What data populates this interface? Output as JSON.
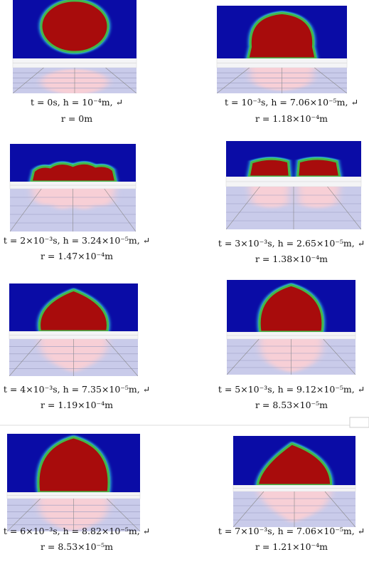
{
  "panels": [
    {
      "line1": "t = 0s,  h = 10⁻⁴m,  ↵",
      "line2": "r = 0m"
    },
    {
      "line1": "t = 10⁻³s,  h = 7.06×10⁻⁵m,  ↵",
      "line2": "r = 1.18×10⁻⁴m"
    },
    {
      "line1": "t = 2×10⁻³s,  h = 3.24×10⁻⁵m,  ↵",
      "line2": "r = 1.47×10⁻⁴m"
    },
    {
      "line1": "t = 3×10⁻³s,  h = 2.65×10⁻⁵m,  ↵",
      "line2": "r = 1.38×10⁻⁴m"
    },
    {
      "line1": "t = 4×10⁻³s,  h = 7.35×10⁻⁵m,  ↵",
      "line2": "r = 1.19×10⁻⁴m"
    },
    {
      "line1": "t = 5×10⁻³s,  h = 9.12×10⁻⁵m,  ↵",
      "line2": "r = 8.53×10⁻⁵m"
    },
    {
      "line1": "t = 6×10⁻³s,  h = 8.82×10⁻⁵m,  ↵",
      "line2": "r = 8.53×10⁻⁵m"
    },
    {
      "line1": "t = 7×10⁻³s,  h = 7.06×10⁻⁵m,  ↵",
      "line2": "r = 1.21×10⁻⁴m"
    }
  ]
}
